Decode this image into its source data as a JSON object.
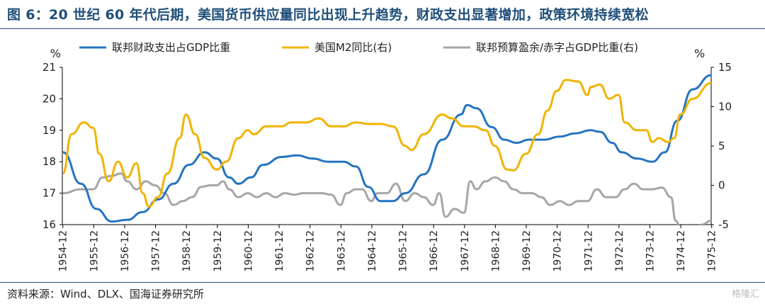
{
  "title": "图 6：20 世纪 60 年代后期，美国货币供应量同比出现上升趋势，财政支出显著增加，政策环境持续宽松",
  "source": "资料来源：Wind、DLX、国海证券研究所",
  "watermark": "格隆汇",
  "chart_data": {
    "type": "line",
    "left_axis": {
      "unit": "%",
      "range": [
        16,
        21
      ],
      "ticks": [
        16,
        17,
        18,
        19,
        20,
        21
      ]
    },
    "right_axis": {
      "unit": "%",
      "range": [
        -5,
        15
      ],
      "ticks": [
        -5,
        0,
        5,
        10,
        15
      ]
    },
    "x_range": [
      1954.9,
      1975.9
    ],
    "x_ticks": [
      "1954-12",
      "1955-12",
      "1956-12",
      "1957-12",
      "1958-12",
      "1959-12",
      "1960-12",
      "1961-12",
      "1962-12",
      "1963-12",
      "1964-12",
      "1965-12",
      "1966-12",
      "1967-12",
      "1968-12",
      "1969-12",
      "1970-12",
      "1971-12",
      "1972-12",
      "1973-12",
      "1974-12",
      "1975-12"
    ],
    "colors": {
      "fiscal": "#2474c0",
      "m2": "#f0b400",
      "balance": "#a6a6a6"
    },
    "series": [
      {
        "key": "fiscal",
        "name": "联邦财政支出占GDP比重",
        "axis": "left",
        "points": [
          [
            1954.92,
            18.3
          ],
          [
            1955.5,
            17.3
          ],
          [
            1956.0,
            16.5
          ],
          [
            1956.5,
            16.1
          ],
          [
            1957.0,
            16.15
          ],
          [
            1957.5,
            16.4
          ],
          [
            1958.0,
            16.8
          ],
          [
            1958.5,
            17.3
          ],
          [
            1959.0,
            17.9
          ],
          [
            1959.5,
            18.3
          ],
          [
            1959.9,
            18.1
          ],
          [
            1960.3,
            17.5
          ],
          [
            1960.6,
            17.3
          ],
          [
            1961.0,
            17.5
          ],
          [
            1961.4,
            17.9
          ],
          [
            1962.0,
            18.15
          ],
          [
            1962.5,
            18.2
          ],
          [
            1963.0,
            18.1
          ],
          [
            1963.5,
            18.0
          ],
          [
            1964.0,
            18.0
          ],
          [
            1964.4,
            17.85
          ],
          [
            1964.8,
            17.2
          ],
          [
            1965.2,
            16.75
          ],
          [
            1965.6,
            16.75
          ],
          [
            1966.0,
            17.0
          ],
          [
            1966.6,
            17.6
          ],
          [
            1967.2,
            18.7
          ],
          [
            1967.8,
            19.5
          ],
          [
            1968.0,
            19.8
          ],
          [
            1968.3,
            19.7
          ],
          [
            1968.8,
            19.1
          ],
          [
            1969.2,
            18.7
          ],
          [
            1969.6,
            18.6
          ],
          [
            1970.0,
            18.7
          ],
          [
            1970.5,
            18.7
          ],
          [
            1971.0,
            18.8
          ],
          [
            1971.5,
            18.9
          ],
          [
            1972.0,
            19.0
          ],
          [
            1972.3,
            18.95
          ],
          [
            1972.7,
            18.6
          ],
          [
            1973.0,
            18.3
          ],
          [
            1973.5,
            18.1
          ],
          [
            1974.0,
            18.0
          ],
          [
            1974.4,
            18.3
          ],
          [
            1974.8,
            19.3
          ],
          [
            1975.3,
            20.3
          ],
          [
            1975.9,
            20.75
          ]
        ]
      },
      {
        "key": "m2",
        "name": "美国M2同比(右)",
        "axis": "right",
        "points": [
          [
            1954.92,
            1.5
          ],
          [
            1955.2,
            6.5
          ],
          [
            1955.6,
            8.0
          ],
          [
            1955.9,
            7.3
          ],
          [
            1956.1,
            4.0
          ],
          [
            1956.4,
            0.5
          ],
          [
            1956.7,
            3.0
          ],
          [
            1957.0,
            1.0
          ],
          [
            1957.3,
            2.8
          ],
          [
            1957.5,
            -1.0
          ],
          [
            1957.7,
            -2.7
          ],
          [
            1958.0,
            -1.5
          ],
          [
            1958.3,
            1.5
          ],
          [
            1958.7,
            6.0
          ],
          [
            1958.9,
            9.0
          ],
          [
            1959.2,
            6.5
          ],
          [
            1959.5,
            3.5
          ],
          [
            1959.9,
            2.0
          ],
          [
            1960.2,
            3.0
          ],
          [
            1960.6,
            6.0
          ],
          [
            1960.9,
            7.0
          ],
          [
            1961.1,
            6.5
          ],
          [
            1961.5,
            7.5
          ],
          [
            1962.0,
            7.5
          ],
          [
            1962.3,
            8.0
          ],
          [
            1962.8,
            8.0
          ],
          [
            1963.2,
            8.5
          ],
          [
            1963.6,
            7.5
          ],
          [
            1964.0,
            7.5
          ],
          [
            1964.4,
            8.0
          ],
          [
            1964.8,
            7.8
          ],
          [
            1965.2,
            7.8
          ],
          [
            1965.6,
            7.5
          ],
          [
            1966.0,
            5.0
          ],
          [
            1966.2,
            4.5
          ],
          [
            1966.6,
            6.5
          ],
          [
            1967.2,
            9.0
          ],
          [
            1967.5,
            8.5
          ],
          [
            1967.9,
            7.5
          ],
          [
            1968.2,
            7.5
          ],
          [
            1968.6,
            7.0
          ],
          [
            1968.9,
            5.0
          ],
          [
            1969.3,
            2.0
          ],
          [
            1969.5,
            1.9
          ],
          [
            1969.9,
            4.0
          ],
          [
            1970.3,
            6.5
          ],
          [
            1970.6,
            9.5
          ],
          [
            1970.9,
            12.0
          ],
          [
            1971.2,
            13.4
          ],
          [
            1971.6,
            13.2
          ],
          [
            1971.9,
            11.5
          ],
          [
            1972.0,
            12.5
          ],
          [
            1972.3,
            12.8
          ],
          [
            1972.6,
            11.0
          ],
          [
            1972.9,
            11.5
          ],
          [
            1973.1,
            8.0
          ],
          [
            1973.5,
            7.0
          ],
          [
            1973.8,
            7.0
          ],
          [
            1974.0,
            5.5
          ],
          [
            1974.2,
            6.0
          ],
          [
            1974.5,
            5.5
          ],
          [
            1974.7,
            6.0
          ],
          [
            1974.9,
            9.0
          ],
          [
            1975.3,
            11.0
          ],
          [
            1975.9,
            13.0
          ]
        ]
      },
      {
        "key": "balance",
        "name": "联邦预算盈余/赤字占GDP比重(右)",
        "axis": "right",
        "points": [
          [
            1954.92,
            -1.0
          ],
          [
            1955.5,
            -0.5
          ],
          [
            1955.9,
            -0.5
          ],
          [
            1956.2,
            1.0
          ],
          [
            1956.5,
            1.2
          ],
          [
            1956.8,
            1.5
          ],
          [
            1957.0,
            0.5
          ],
          [
            1957.3,
            -0.5
          ],
          [
            1957.6,
            0.5
          ],
          [
            1957.9,
            0.0
          ],
          [
            1958.2,
            -1.0
          ],
          [
            1958.5,
            -2.5
          ],
          [
            1958.8,
            -2.0
          ],
          [
            1959.1,
            -1.5
          ],
          [
            1959.4,
            -0.2
          ],
          [
            1959.7,
            0.0
          ],
          [
            1959.9,
            0.0
          ],
          [
            1960.1,
            0.5
          ],
          [
            1960.3,
            -0.5
          ],
          [
            1960.6,
            -1.5
          ],
          [
            1960.9,
            -1.0
          ],
          [
            1961.2,
            -1.5
          ],
          [
            1961.5,
            -1.0
          ],
          [
            1961.8,
            -1.5
          ],
          [
            1962.1,
            -1.0
          ],
          [
            1962.4,
            -1.2
          ],
          [
            1962.7,
            -1.0
          ],
          [
            1963.0,
            -1.0
          ],
          [
            1963.3,
            -1.0
          ],
          [
            1963.6,
            -1.2
          ],
          [
            1963.9,
            -2.5
          ],
          [
            1964.1,
            -1.0
          ],
          [
            1964.4,
            -0.5
          ],
          [
            1964.6,
            -0.5
          ],
          [
            1964.9,
            -2.0
          ],
          [
            1965.1,
            -1.0
          ],
          [
            1965.4,
            -1.0
          ],
          [
            1965.7,
            0.2
          ],
          [
            1966.0,
            -2.0
          ],
          [
            1966.3,
            -1.0
          ],
          [
            1966.6,
            -1.5
          ],
          [
            1966.9,
            -2.5
          ],
          [
            1967.1,
            -1.0
          ],
          [
            1967.3,
            -4.0
          ],
          [
            1967.6,
            -3.0
          ],
          [
            1967.9,
            -3.5
          ],
          [
            1968.1,
            0.5
          ],
          [
            1968.3,
            -0.5
          ],
          [
            1968.6,
            0.5
          ],
          [
            1968.9,
            1.0
          ],
          [
            1969.2,
            0.5
          ],
          [
            1969.5,
            -0.5
          ],
          [
            1969.8,
            -1.0
          ],
          [
            1970.1,
            -1.0
          ],
          [
            1970.4,
            -1.5
          ],
          [
            1970.7,
            -2.5
          ],
          [
            1971.0,
            -2.0
          ],
          [
            1971.3,
            -2.5
          ],
          [
            1971.6,
            -2.0
          ],
          [
            1971.9,
            -2.0
          ],
          [
            1972.2,
            -0.5
          ],
          [
            1972.5,
            -1.5
          ],
          [
            1972.8,
            -1.5
          ],
          [
            1973.1,
            -0.5
          ],
          [
            1973.4,
            0.2
          ],
          [
            1973.7,
            -0.5
          ],
          [
            1974.0,
            -0.5
          ],
          [
            1974.3,
            -0.3
          ],
          [
            1974.6,
            -1.5
          ],
          [
            1974.75,
            -4.5
          ],
          [
            1974.95,
            -6.0
          ],
          [
            1975.3,
            -6.0
          ],
          [
            1975.6,
            -5.0
          ],
          [
            1975.9,
            -4.5
          ]
        ]
      }
    ]
  }
}
